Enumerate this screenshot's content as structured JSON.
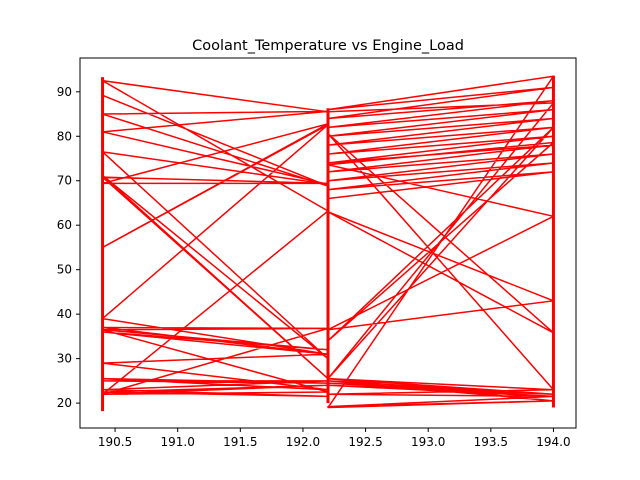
{
  "chart_data": {
    "type": "line",
    "title": "Coolant_Temperature vs Engine_Load",
    "xlabel": "",
    "ylabel": "",
    "xlim": [
      190.22,
      194.18
    ],
    "ylim": [
      14.4,
      97.6
    ],
    "x_ticks": [
      190.5,
      191.0,
      191.5,
      192.0,
      192.5,
      193.0,
      193.5,
      194.0
    ],
    "x_tick_labels": [
      "190.5",
      "191.0",
      "191.5",
      "192.0",
      "192.5",
      "193.0",
      "193.5",
      "194.0"
    ],
    "y_ticks": [
      20,
      30,
      40,
      50,
      60,
      70,
      80,
      90
    ],
    "y_tick_labels": [
      "20",
      "30",
      "40",
      "50",
      "60",
      "70",
      "80",
      "90"
    ],
    "grid": false,
    "legend": "none",
    "colors": {
      "series": "#ff0000",
      "axes": "#000000",
      "background": "#ffffff"
    },
    "series": [
      {
        "x": [
          190.4,
          192.2,
          190.4,
          192.2,
          190.4,
          192.2,
          190.4,
          192.2,
          190.4,
          192.2,
          190.4,
          192.2,
          190.4,
          192.2,
          190.4,
          192.2,
          190.4,
          192.2,
          190.4,
          192.2,
          190.4,
          192.2,
          190.4,
          192.2,
          190.4,
          192.2,
          190.4,
          192.2,
          190.4,
          192.2,
          190.4,
          192.2,
          190.4,
          192.2,
          190.4,
          192.2,
          190.4,
          192.2,
          190.4,
          192.2,
          190.4,
          192.2,
          194.0,
          192.2,
          194.0,
          192.2,
          194.0,
          192.2,
          194.0,
          192.2,
          194.0,
          192.2,
          194.0,
          192.2,
          194.0,
          192.2,
          194.0,
          192.2,
          194.0,
          192.2,
          194.0,
          192.2,
          194.0,
          192.2,
          194.0,
          192.2,
          194.0,
          192.2,
          194.0,
          192.2,
          194.0,
          192.2,
          194.0,
          192.2,
          194.0,
          192.2,
          194.0,
          192.2,
          194.0,
          192.2,
          194.0,
          192.2,
          194.0,
          192.2,
          194.0,
          192.2,
          194.0,
          192.2,
          194.0,
          192.2,
          194.0,
          192.2
        ],
        "y": [
          89.2,
          68.8,
          85.0,
          85.6,
          81.0,
          69.2,
          76.5,
          30.0,
          71.2,
          25.5,
          70.8,
          69.4,
          69.4,
          82.8,
          55.0,
          82.6,
          39.0,
          31.0,
          37.0,
          36.8,
          36.5,
          32.0,
          36.0,
          31.0,
          29.0,
          23.0,
          25.5,
          24.5,
          25.0,
          25.0,
          23.0,
          21.5,
          22.5,
          24.0,
          22.0,
          22.5,
          36.5,
          36.8,
          22.0,
          63.2,
          92.5,
          85.5,
          87.5,
          25.5,
          82.0,
          34.0,
          78.6,
          73.6,
          62.0,
          36.5,
          43.0,
          63.0,
          35.8,
          80.6,
          23.0,
          25.5,
          22.0,
          24.5,
          21.5,
          19.2,
          20.5,
          25.0,
          22.0,
          24.0,
          21.5,
          22.0,
          23.0,
          25.5,
          20.5,
          19.0,
          93.5,
          86.0,
          91.0,
          84.0,
          88.0,
          82.0,
          86.0,
          80.0,
          84.0,
          78.0,
          82.0,
          76.0,
          80.0,
          74.0,
          78.0,
          72.0,
          76.0,
          70.0,
          74.0,
          68.0,
          72.0,
          66.0
        ]
      }
    ],
    "verticals": [
      {
        "x": 190.4,
        "y": [
          18.2,
          93.3
        ]
      },
      {
        "x": 192.2,
        "y": [
          20.0,
          86.3
        ]
      },
      {
        "x": 194.0,
        "y": [
          19.0,
          93.6
        ]
      }
    ]
  }
}
